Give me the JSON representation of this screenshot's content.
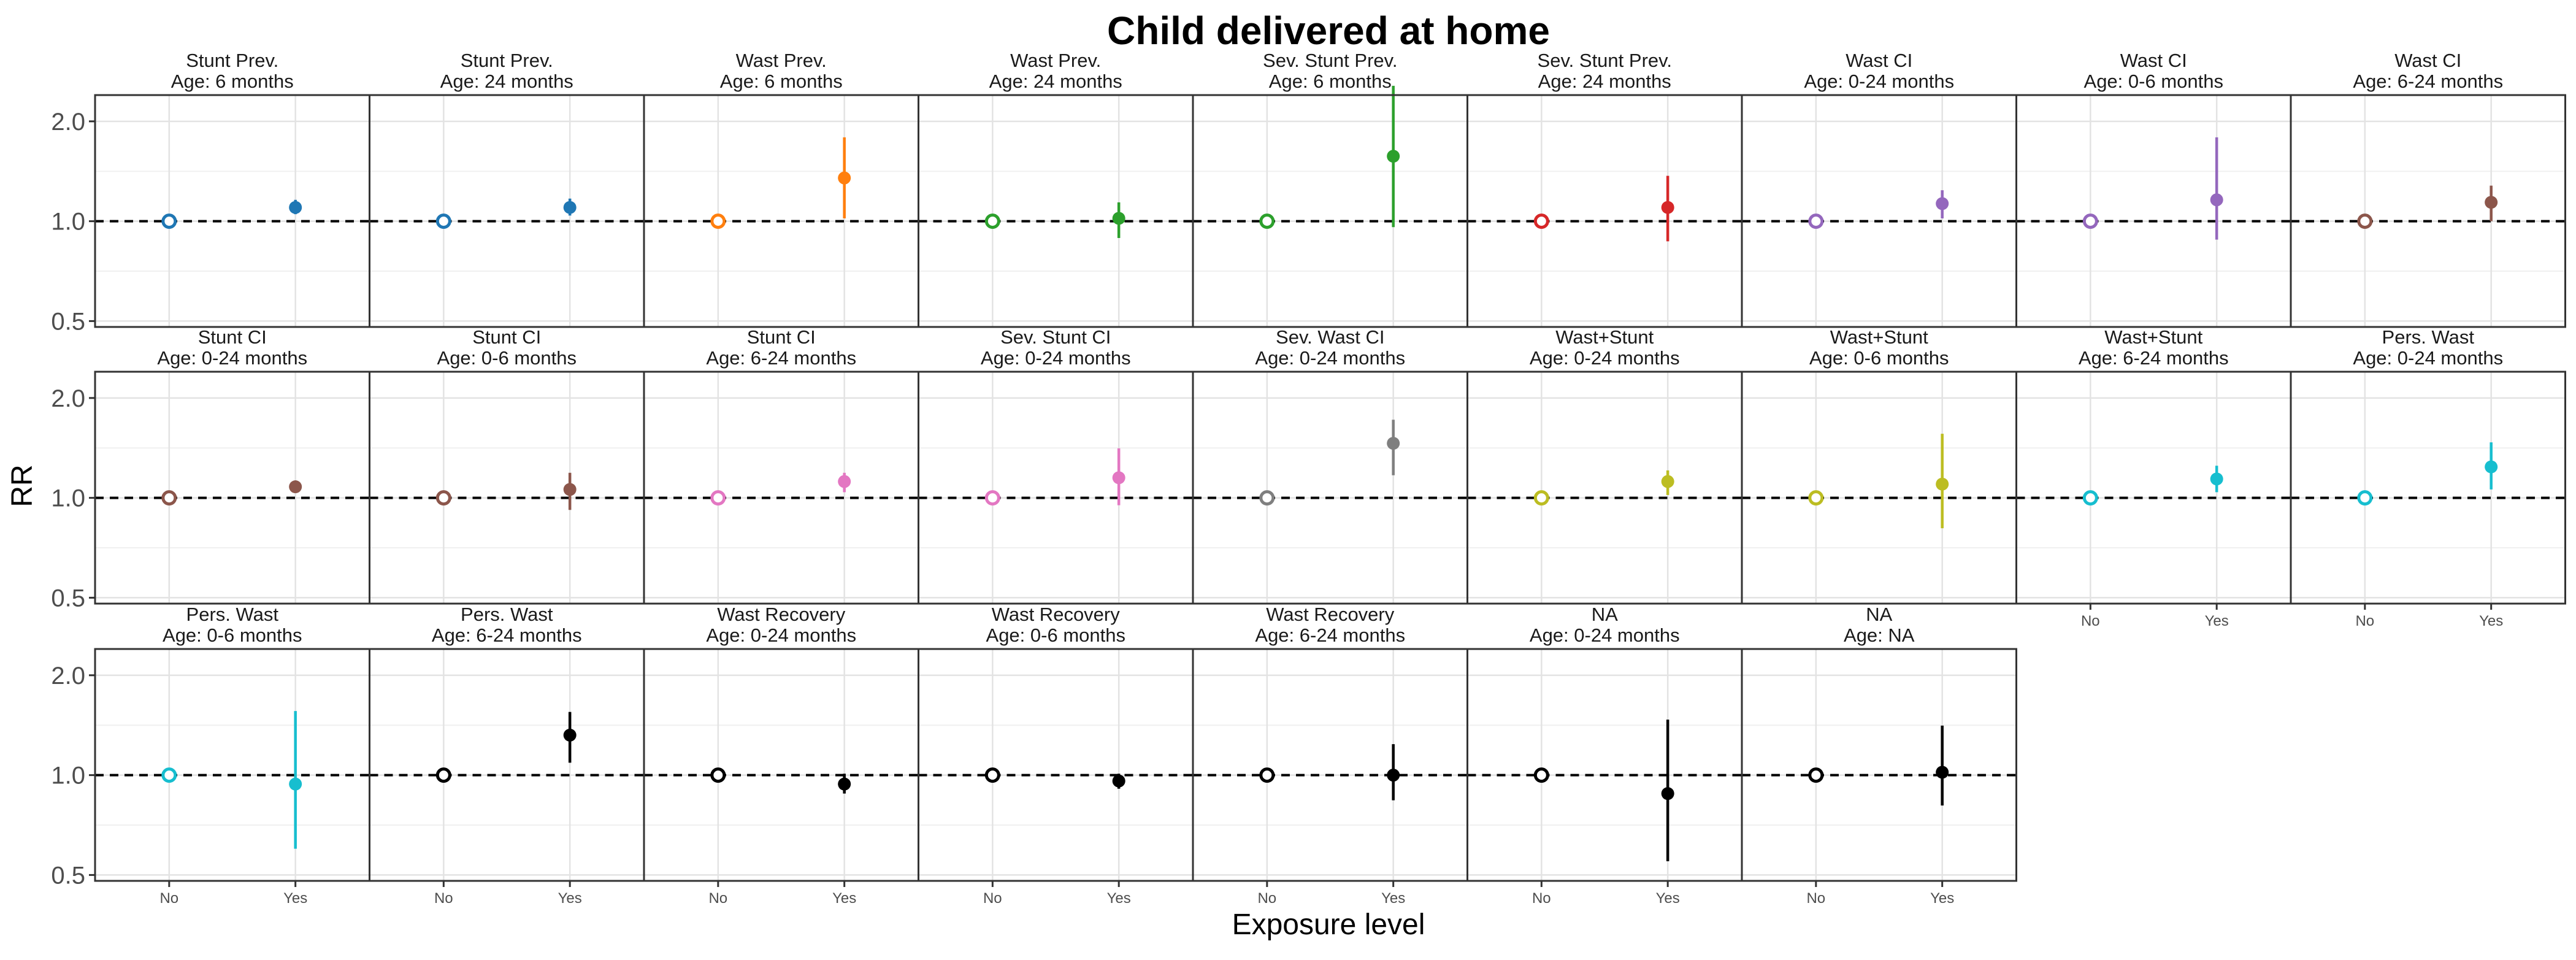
{
  "chart_data": {
    "type": "scatter",
    "title": "Child delivered at home",
    "xlabel": "Exposure level",
    "ylabel": "RR",
    "y_scale": "log",
    "ylim": [
      0.48,
      2.4
    ],
    "y_ticks": [
      {
        "value": 0.5,
        "label": "0.5"
      },
      {
        "value": 1.0,
        "label": "1.0"
      },
      {
        "value": 2.0,
        "label": "2.0"
      }
    ],
    "reference_line": 1.0,
    "categories": [
      "No",
      "Yes"
    ],
    "grid": true,
    "legend": "none",
    "panels": [
      {
        "title": "Stunt Prev.",
        "subtitle": "Age: 6 months",
        "color": "#1F77B4",
        "yes": {
          "rr": 1.1,
          "lower": 1.05,
          "upper": 1.16
        }
      },
      {
        "title": "Stunt Prev.",
        "subtitle": "Age: 24 months",
        "color": "#1F77B4",
        "yes": {
          "rr": 1.1,
          "lower": 1.04,
          "upper": 1.17
        }
      },
      {
        "title": "Wast Prev.",
        "subtitle": "Age: 6 months",
        "color": "#FF7F0E",
        "yes": {
          "rr": 1.35,
          "lower": 1.02,
          "upper": 1.79
        }
      },
      {
        "title": "Wast Prev.",
        "subtitle": "Age: 24 months",
        "color": "#2CA02C",
        "yes": {
          "rr": 1.02,
          "lower": 0.89,
          "upper": 1.14
        }
      },
      {
        "title": "Sev. Stunt Prev.",
        "subtitle": "Age: 6 months",
        "color": "#2CA02C",
        "yes": {
          "rr": 1.57,
          "lower": 0.96,
          "upper": 2.56
        }
      },
      {
        "title": "Sev. Stunt Prev.",
        "subtitle": "Age: 24 months",
        "color": "#D62728",
        "yes": {
          "rr": 1.1,
          "lower": 0.87,
          "upper": 1.37
        }
      },
      {
        "title": "Wast CI",
        "subtitle": "Age: 0-24 months",
        "color": "#9467BD",
        "yes": {
          "rr": 1.13,
          "lower": 1.02,
          "upper": 1.24
        }
      },
      {
        "title": "Wast CI",
        "subtitle": "Age: 0-6 months",
        "color": "#9467BD",
        "yes": {
          "rr": 1.16,
          "lower": 0.88,
          "upper": 1.79
        }
      },
      {
        "title": "Wast CI",
        "subtitle": "Age: 6-24 months",
        "color": "#8C564B",
        "yes": {
          "rr": 1.14,
          "lower": 1.0,
          "upper": 1.28
        }
      },
      {
        "title": "Stunt CI",
        "subtitle": "Age: 0-24 months",
        "color": "#8C564B",
        "yes": {
          "rr": 1.08,
          "lower": 1.04,
          "upper": 1.12
        }
      },
      {
        "title": "Stunt CI",
        "subtitle": "Age: 0-6 months",
        "color": "#8C564B",
        "yes": {
          "rr": 1.06,
          "lower": 0.92,
          "upper": 1.19
        }
      },
      {
        "title": "Stunt CI",
        "subtitle": "Age: 6-24 months",
        "color": "#E377C2",
        "yes": {
          "rr": 1.12,
          "lower": 1.04,
          "upper": 1.19
        }
      },
      {
        "title": "Sev. Stunt CI",
        "subtitle": "Age: 0-24 months",
        "color": "#E377C2",
        "yes": {
          "rr": 1.15,
          "lower": 0.95,
          "upper": 1.41
        }
      },
      {
        "title": "Sev. Wast CI",
        "subtitle": "Age: 0-24 months",
        "color": "#7F7F7F",
        "yes": {
          "rr": 1.46,
          "lower": 1.17,
          "upper": 1.72
        }
      },
      {
        "title": "Wast+Stunt",
        "subtitle": "Age: 0-24 months",
        "color": "#BCBD22",
        "yes": {
          "rr": 1.12,
          "lower": 1.02,
          "upper": 1.21
        }
      },
      {
        "title": "Wast+Stunt",
        "subtitle": "Age: 0-6 months",
        "color": "#BCBD22",
        "yes": {
          "rr": 1.1,
          "lower": 0.81,
          "upper": 1.56
        }
      },
      {
        "title": "Wast+Stunt",
        "subtitle": "Age: 6-24 months",
        "color": "#17BECF",
        "yes": {
          "rr": 1.14,
          "lower": 1.04,
          "upper": 1.25
        }
      },
      {
        "title": "Pers. Wast",
        "subtitle": "Age: 0-24 months",
        "color": "#17BECF",
        "yes": {
          "rr": 1.24,
          "lower": 1.06,
          "upper": 1.47
        }
      },
      {
        "title": "Pers. Wast",
        "subtitle": "Age: 0-6 months",
        "color": "#17BECF",
        "yes": {
          "rr": 0.94,
          "lower": 0.6,
          "upper": 1.56
        }
      },
      {
        "title": "Pers. Wast",
        "subtitle": "Age: 6-24 months",
        "color": "#000000",
        "yes": {
          "rr": 1.32,
          "lower": 1.09,
          "upper": 1.55
        }
      },
      {
        "title": "Wast Recovery",
        "subtitle": "Age: 0-24 months",
        "color": "#000000",
        "yes": {
          "rr": 0.94,
          "lower": 0.88,
          "upper": 1.01
        }
      },
      {
        "title": "Wast Recovery",
        "subtitle": "Age: 0-6 months",
        "color": "#000000",
        "yes": {
          "rr": 0.96,
          "lower": 0.91,
          "upper": 1.01
        }
      },
      {
        "title": "Wast Recovery",
        "subtitle": "Age: 6-24 months",
        "color": "#000000",
        "yes": {
          "rr": 1.0,
          "lower": 0.84,
          "upper": 1.24
        }
      },
      {
        "title": "NA",
        "subtitle": "Age: 0-24 months",
        "color": "#000000",
        "yes": {
          "rr": 0.88,
          "lower": 0.55,
          "upper": 1.47
        }
      },
      {
        "title": "NA",
        "subtitle": "Age: NA",
        "color": "#000000",
        "yes": {
          "rr": 1.02,
          "lower": 0.81,
          "upper": 1.41
        }
      }
    ]
  }
}
